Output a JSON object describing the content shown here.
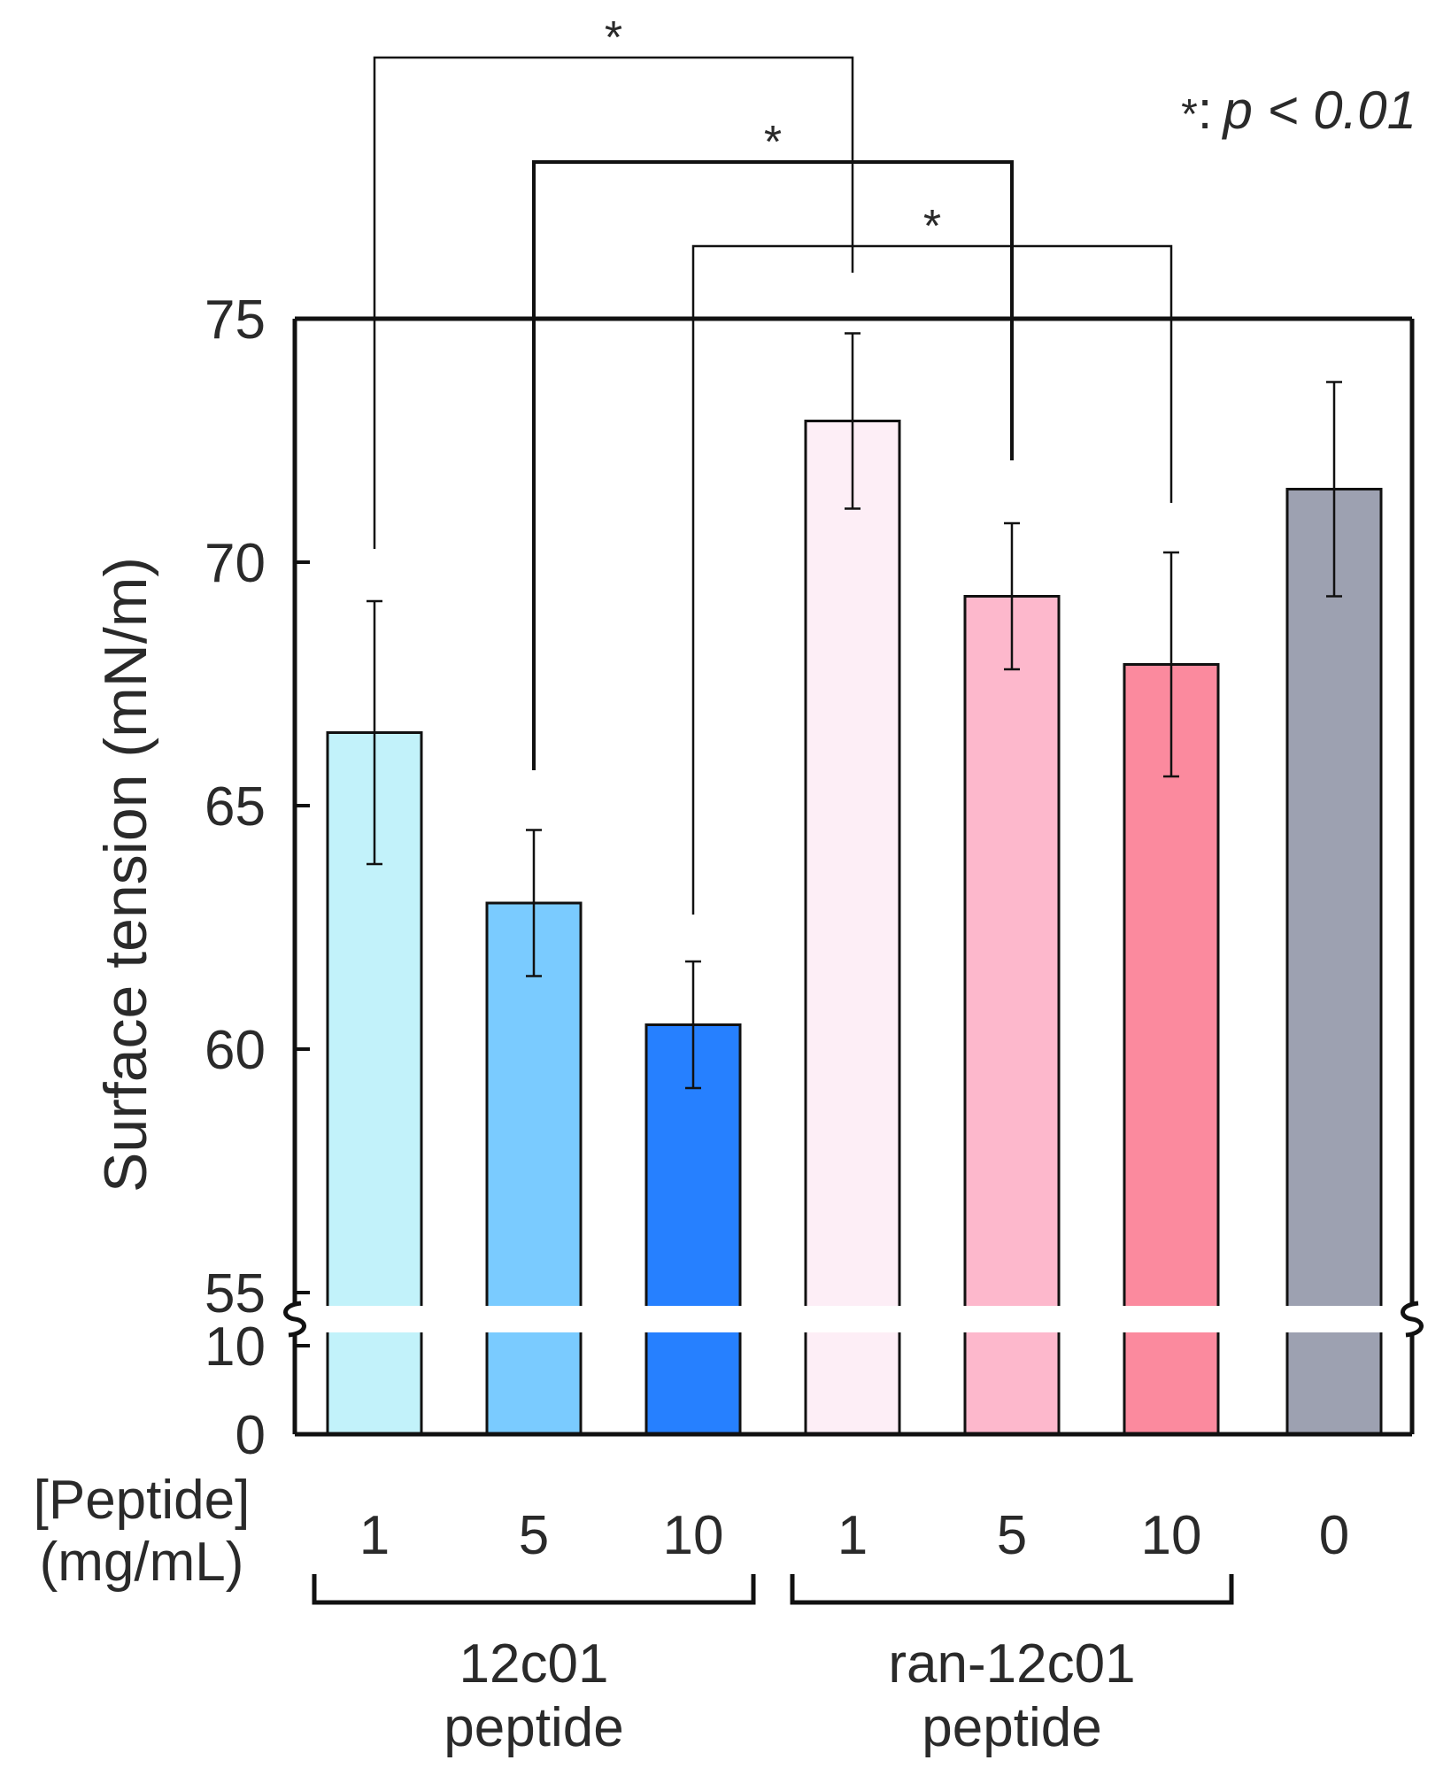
{
  "chart_data": {
    "type": "bar",
    "ylabel": "Surface tension (mN/m)",
    "xlabel_lines": [
      "[Peptide]",
      "(mg/mL)"
    ],
    "y_ticks_upper": [
      55,
      60,
      65,
      70,
      75
    ],
    "y_ticks_lower": [
      0,
      10
    ],
    "ylim_upper": [
      55,
      75
    ],
    "ylim_lower": [
      0,
      10
    ],
    "axis_break": true,
    "bars": [
      {
        "label": "1",
        "group": "12c01 peptide",
        "value": 66.5,
        "err_low": 63.8,
        "err_high": 69.2,
        "color": "#c2f2fa"
      },
      {
        "label": "5",
        "group": "12c01 peptide",
        "value": 63.0,
        "err_low": 61.5,
        "err_high": 64.5,
        "color": "#7acbff"
      },
      {
        "label": "10",
        "group": "12c01 peptide",
        "value": 60.5,
        "err_low": 59.2,
        "err_high": 61.8,
        "color": "#2680ff"
      },
      {
        "label": "1",
        "group": "ran-12c01 peptide",
        "value": 72.9,
        "err_low": 71.1,
        "err_high": 74.7,
        "color": "#fdeef6"
      },
      {
        "label": "5",
        "group": "ran-12c01 peptide",
        "value": 69.3,
        "err_low": 67.8,
        "err_high": 70.8,
        "color": "#fdb8cc"
      },
      {
        "label": "10",
        "group": "ran-12c01 peptide",
        "value": 67.9,
        "err_low": 65.6,
        "err_high": 70.2,
        "color": "#fb8a9e"
      },
      {
        "label": "0",
        "group": "",
        "value": 71.5,
        "err_low": 69.3,
        "err_high": 73.7,
        "color": "#9da1b1"
      }
    ],
    "groups": [
      {
        "lines": [
          "12c01",
          "peptide"
        ],
        "bar_indices": [
          0,
          1,
          2
        ]
      },
      {
        "lines": [
          "ran-12c01",
          "peptide"
        ],
        "bar_indices": [
          3,
          4,
          5
        ]
      }
    ],
    "significance": [
      {
        "pair": [
          0,
          3
        ],
        "marker": "*"
      },
      {
        "pair": [
          1,
          4
        ],
        "marker": "*"
      },
      {
        "pair": [
          2,
          5
        ],
        "marker": "*"
      }
    ],
    "significance_note": {
      "symbol": "*",
      "separator": ":",
      "text": "p < 0.01"
    }
  }
}
